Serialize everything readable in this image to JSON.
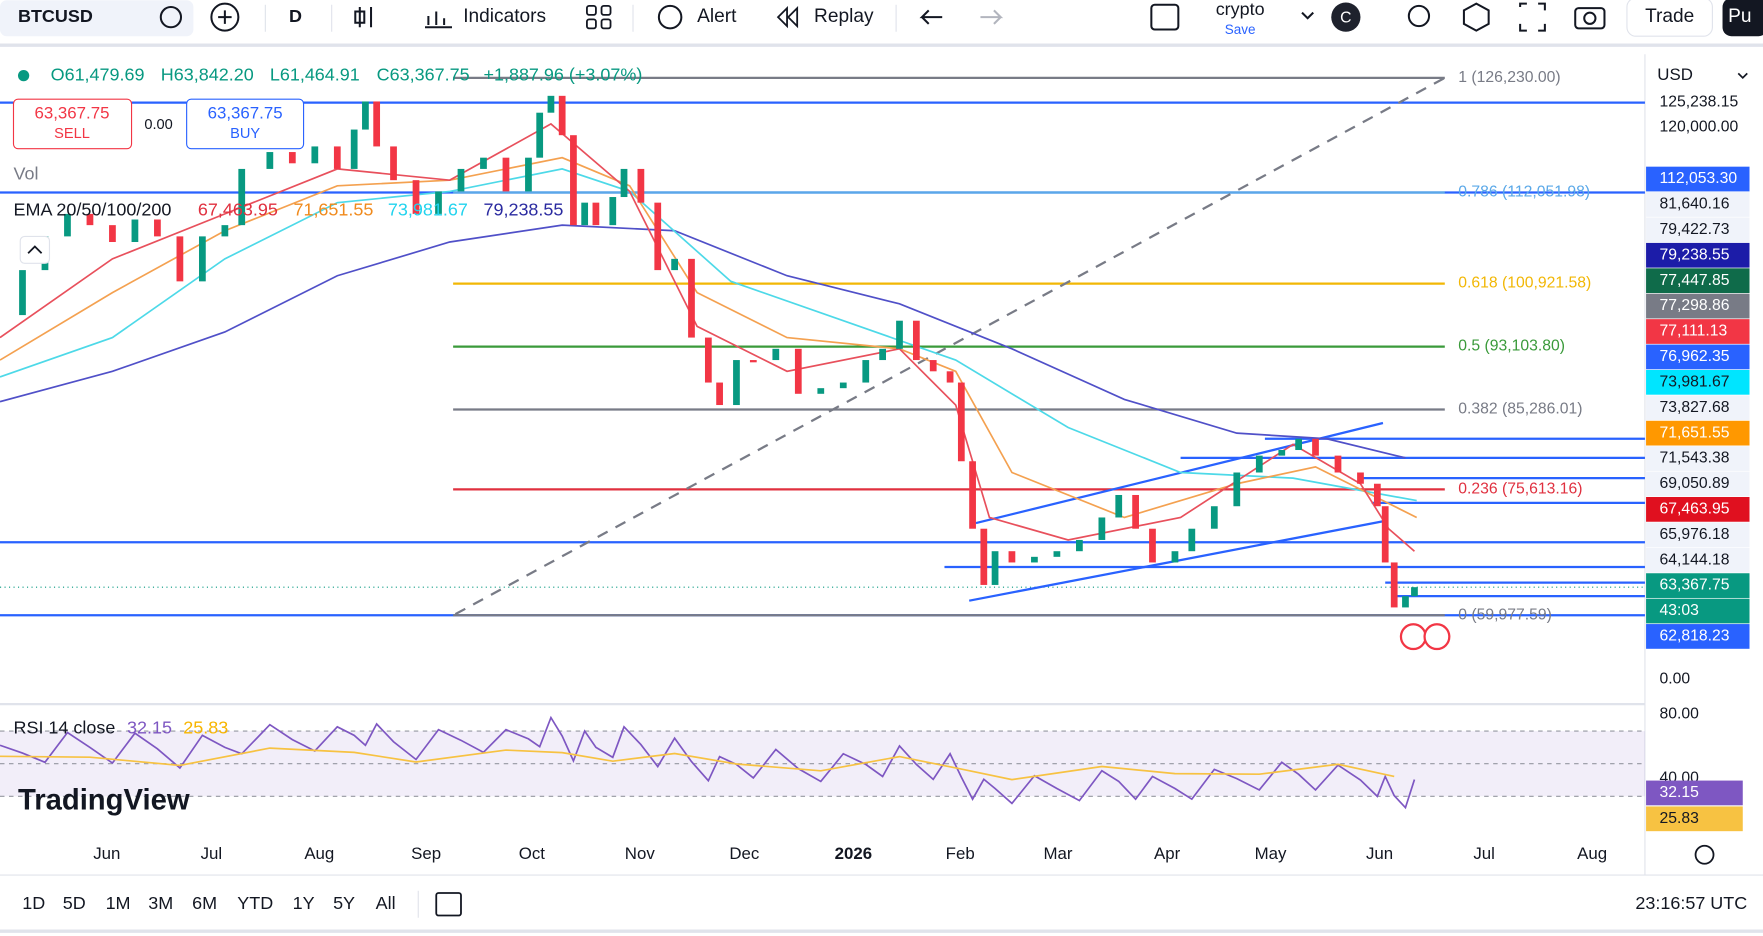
{
  "toolbar": {
    "symbol": "BTCUSD",
    "interval": "D",
    "indicators": "Indicators",
    "alert": "Alert",
    "replay": "Replay",
    "layout_name": "crypto",
    "save": "Save",
    "avatar": "C",
    "trade": "Trade",
    "publish": "Pu"
  },
  "legend": {
    "open": "O61,479.69",
    "high": "H63,842.20",
    "low": "L61,464.91",
    "close": "C63,367.75",
    "change": "+1,887.96 (+3.07%)",
    "sell_price": "63,367.75",
    "sell": "SELL",
    "spread": "0.00",
    "buy_price": "63,367.75",
    "buy": "BUY",
    "volume": "Vol",
    "ema_label": "EMA 20/50/100/200",
    "ema_values": [
      {
        "text": "67,463.95",
        "color": "#e0303f"
      },
      {
        "text": "71,651.55",
        "color": "#f08a1c"
      },
      {
        "text": "73,981.67",
        "color": "#22d3ee"
      },
      {
        "text": "79,238.55",
        "color": "#2a2aa0"
      }
    ]
  },
  "fib_levels": [
    {
      "label": "1 (126,230.00)",
      "color": "#787b86"
    },
    {
      "label": "0.786 (112,051.98)",
      "color": "#5aa8e8"
    },
    {
      "label": "0.618 (100,921.58)",
      "color": "#f2b705"
    },
    {
      "label": "0.5 (93,103.80)",
      "color": "#3a9a3a"
    },
    {
      "label": "0.382 (85,286.01)",
      "color": "#787b86"
    },
    {
      "label": "0.236 (75,613.16)",
      "color": "#e0303f"
    },
    {
      "label": "0 (59,977.59)",
      "color": "#787b86"
    }
  ],
  "price_axis": {
    "currency": "USD",
    "top_labels": [
      "125,238.15",
      "120,000.00"
    ],
    "labels": [
      {
        "text": "112,053.30",
        "bg": "#2962ff",
        "fg": "#ffffff"
      },
      {
        "text": "81,640.16",
        "bg": "#f0f3fa",
        "fg": "#131722"
      },
      {
        "text": "79,422.73",
        "bg": "#f0f3fa",
        "fg": "#131722"
      },
      {
        "text": "79,238.55",
        "bg": "#1c1ca8",
        "fg": "#ffffff"
      },
      {
        "text": "77,447.85",
        "bg": "#0f6b4a",
        "fg": "#ffffff"
      },
      {
        "text": "77,298.86",
        "bg": "#787b86",
        "fg": "#ffffff"
      },
      {
        "text": "77,111.13",
        "bg": "#f23645",
        "fg": "#ffffff"
      },
      {
        "text": "76,962.35",
        "bg": "#2962ff",
        "fg": "#ffffff"
      },
      {
        "text": "73,981.67",
        "bg": "#00e5ff",
        "fg": "#131722"
      },
      {
        "text": "73,827.68",
        "bg": "#f0f3fa",
        "fg": "#131722"
      },
      {
        "text": "71,651.55",
        "bg": "#ff9800",
        "fg": "#ffffff"
      },
      {
        "text": "71,543.38",
        "bg": "#f0f3fa",
        "fg": "#131722"
      },
      {
        "text": "69,050.89",
        "bg": "#f0f3fa",
        "fg": "#131722"
      },
      {
        "text": "67,463.95",
        "bg": "#e0101f",
        "fg": "#ffffff"
      },
      {
        "text": "65,976.18",
        "bg": "#f0f3fa",
        "fg": "#131722"
      },
      {
        "text": "64,144.18",
        "bg": "#f0f3fa",
        "fg": "#131722"
      },
      {
        "text": "63,367.75",
        "bg": "#089981",
        "fg": "#ffffff"
      },
      {
        "text": "43:03",
        "bg": "#089981",
        "fg": "#ffffff"
      },
      {
        "text": "62,818.23",
        "bg": "#2962ff",
        "fg": "#ffffff"
      }
    ],
    "lower_labels": [
      "0.00",
      "80.00",
      "40.00"
    ]
  },
  "rsi": {
    "label": "RSI 14 close",
    "value": "32.15",
    "smoothed": "25.83"
  },
  "time_axis": [
    "Jun",
    "Jul",
    "Aug",
    "Sep",
    "Oct",
    "Nov",
    "Dec",
    "2026",
    "Feb",
    "Mar",
    "Apr",
    "May",
    "Jun",
    "Jul",
    "Aug"
  ],
  "brand": "TradingView",
  "ranges": [
    "1D",
    "5D",
    "1M",
    "3M",
    "6M",
    "YTD",
    "1Y",
    "5Y",
    "All"
  ],
  "clock": "23:16:57 UTC"
}
